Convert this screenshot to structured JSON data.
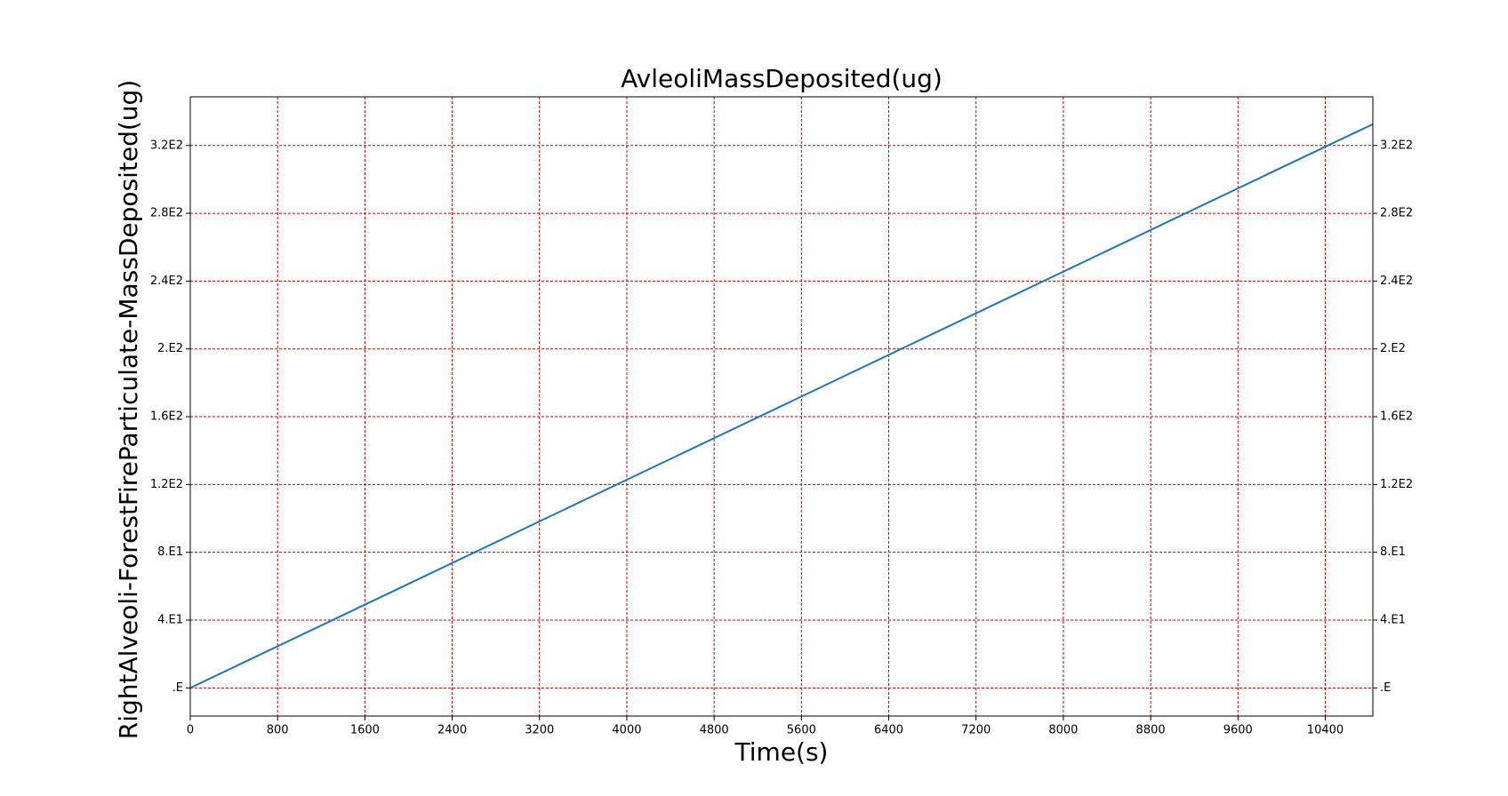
{
  "chart_data": {
    "type": "line",
    "title": "AvleoliMassDeposited(ug)",
    "x_label": "Time(s)",
    "y_label": "RightAlveoli-ForestFireParticulate-MassDeposited(ug)",
    "x": [
      0,
      2000,
      4000,
      6000,
      8000,
      10000,
      10836
    ],
    "series": [
      {
        "name": "RightAlveoli-ForestFireParticulate-MassDeposited(ug)",
        "color": "#1f77b4",
        "values": [
          0,
          61.4,
          122.8,
          184.2,
          245.6,
          307.0,
          332.6
        ]
      }
    ],
    "xlim": [
      0,
      10836
    ],
    "xticks": [
      0,
      800,
      1600,
      2400,
      3200,
      4000,
      4800,
      5600,
      6400,
      7200,
      8000,
      8800,
      9600,
      10400
    ],
    "ylim": [
      -16.6,
      348.7
    ],
    "yticks": [
      {
        "value": 0,
        "label": ".E"
      },
      {
        "value": 40,
        "label": "4.E1"
      },
      {
        "value": 80,
        "label": "8.E1"
      },
      {
        "value": 120,
        "label": "1.2E2"
      },
      {
        "value": 160,
        "label": "1.6E2"
      },
      {
        "value": 200,
        "label": "2.E2"
      },
      {
        "value": 240,
        "label": "2.4E2"
      },
      {
        "value": 280,
        "label": "2.8E2"
      },
      {
        "value": 320,
        "label": "3.2E2"
      }
    ],
    "grid": true,
    "grid_color": "#cc0000"
  }
}
